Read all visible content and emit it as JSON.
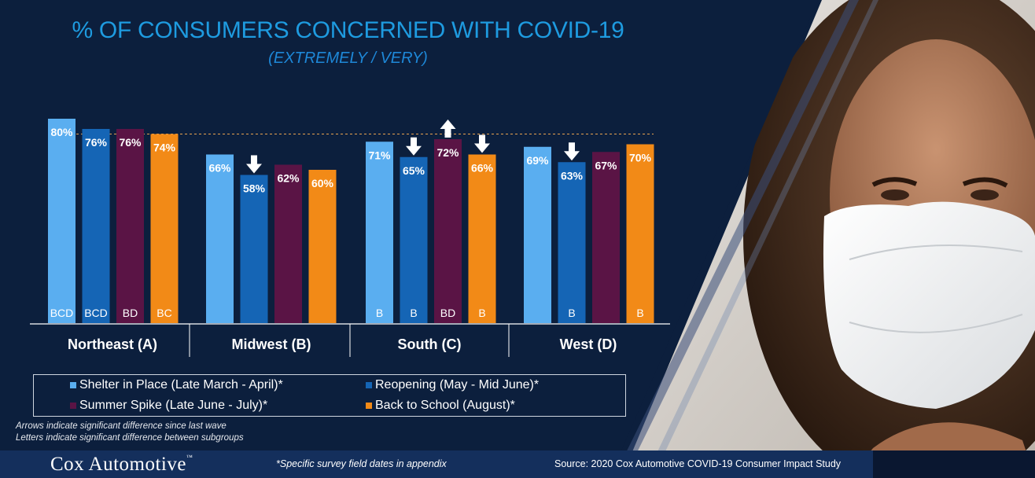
{
  "title": "% OF CONSUMERS CONCERNED WITH COVID-19",
  "subtitle": "(EXTREMELY / VERY)",
  "colors": {
    "background": "#0c1f3d",
    "title": "#1e9be0",
    "series": [
      "#5aaef0",
      "#1565b5",
      "#5a1445",
      "#f28a17"
    ]
  },
  "chart_data": {
    "type": "bar",
    "categories": [
      "Northeast (A)",
      "Midwest (B)",
      "South (C)",
      "West (D)"
    ],
    "series": [
      {
        "name": "Shelter in Place (Late March - April)*",
        "values": [
          80,
          66,
          71,
          69
        ],
        "labels": [
          "80%",
          "66%",
          "71%",
          "69%"
        ],
        "letters": [
          "BCD",
          "",
          "B",
          ""
        ],
        "arrows": [
          "",
          "",
          "",
          ""
        ]
      },
      {
        "name": "Reopening (May - Mid June)*",
        "values": [
          76,
          58,
          65,
          63
        ],
        "labels": [
          "76%",
          "58%",
          "65%",
          "63%"
        ],
        "letters": [
          "BCD",
          "",
          "B",
          "B"
        ],
        "arrows": [
          "",
          "down",
          "down",
          "down"
        ]
      },
      {
        "name": "Summer Spike (Late June - July)*",
        "values": [
          76,
          62,
          72,
          67
        ],
        "labels": [
          "76%",
          "62%",
          "72%",
          "67%"
        ],
        "letters": [
          "BD",
          "",
          "BD",
          ""
        ],
        "arrows": [
          "",
          "",
          "up",
          ""
        ]
      },
      {
        "name": "Back to School (August)*",
        "values": [
          74,
          60,
          66,
          70
        ],
        "labels": [
          "74%",
          "60%",
          "66%",
          "70%"
        ],
        "letters": [
          "BC",
          "",
          "B",
          "B"
        ],
        "arrows": [
          "",
          "",
          "down",
          ""
        ]
      }
    ],
    "reference_line": 74,
    "ylim": [
      0,
      100
    ],
    "legend_position": "bottom"
  },
  "notes": {
    "arrows": "Arrows indicate significant difference since last wave",
    "letters": "Letters indicate significant difference between subgroups"
  },
  "footer": {
    "logo": "Cox Automotive",
    "trademark": "™",
    "field_dates": "*Specific survey field dates in appendix",
    "source": "Source: 2020 Cox Automotive COVID-19 Consumer Impact Study"
  }
}
